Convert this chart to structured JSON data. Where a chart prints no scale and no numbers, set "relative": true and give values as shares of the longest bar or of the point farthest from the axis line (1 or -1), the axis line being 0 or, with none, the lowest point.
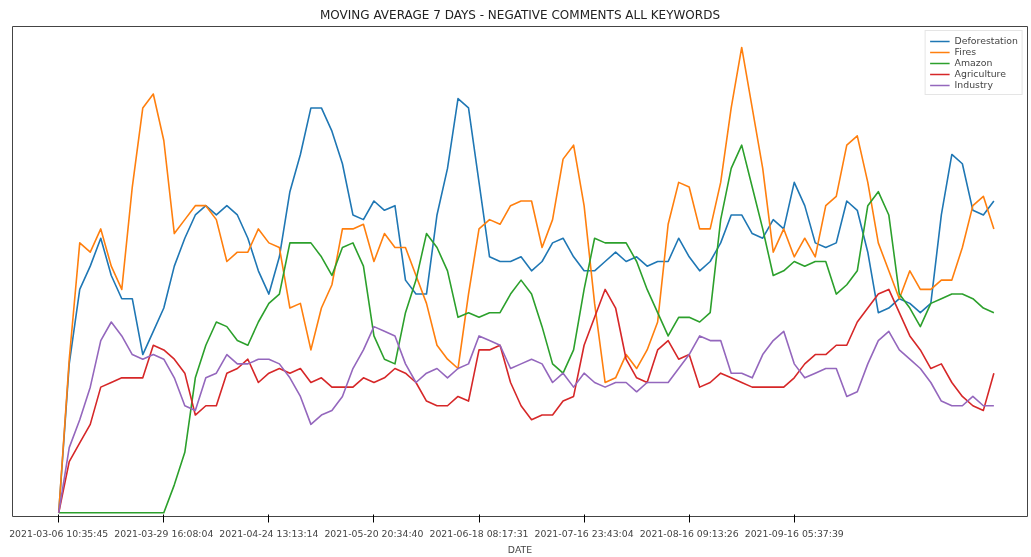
{
  "chart_data": {
    "type": "line",
    "title": "MOVING AVERAGE 7 DAYS - NEGATIVE COMMENTS ALL KEYWORDS",
    "xlabel": "DATE",
    "relative": true,
    "grid": false,
    "legend": "top right",
    "line_style": "solid",
    "marker": "none",
    "categories": [
      "2021-03-06 10:35:45",
      null,
      null,
      null,
      null,
      null,
      null,
      null,
      null,
      null,
      "2021-03-29 16:08:04",
      null,
      null,
      null,
      null,
      null,
      null,
      null,
      null,
      null,
      "2021-04-24 13:13:14",
      null,
      null,
      null,
      null,
      null,
      null,
      null,
      null,
      null,
      "2021-05-20 20:34:40",
      null,
      null,
      null,
      null,
      null,
      null,
      null,
      null,
      null,
      "2021-06-18 08:17:31",
      null,
      null,
      null,
      null,
      null,
      null,
      null,
      null,
      null,
      "2021-07-16 23:43:04",
      null,
      null,
      null,
      null,
      null,
      null,
      null,
      null,
      null,
      "2021-08-16 09:13:26",
      null,
      null,
      null,
      null,
      null,
      null,
      null,
      null,
      null,
      "2021-09-16 05:37:39",
      null,
      null,
      null,
      null,
      null,
      null,
      null,
      null,
      null,
      null,
      null,
      null,
      null,
      null,
      null,
      null,
      null,
      null,
      null
    ],
    "series": [
      {
        "name": "Deforestation",
        "color": "#1f77b4",
        "values": [
          0,
          0.32,
          0.48,
          0.53,
          0.59,
          0.51,
          0.46,
          0.46,
          0.34,
          0.39,
          0.44,
          0.53,
          0.59,
          0.64,
          0.66,
          0.64,
          0.66,
          0.64,
          0.59,
          0.52,
          0.47,
          0.55,
          0.69,
          0.77,
          0.87,
          0.87,
          0.82,
          0.75,
          0.64,
          0.63,
          0.67,
          0.65,
          0.66,
          0.5,
          0.47,
          0.47,
          0.64,
          0.74,
          0.89,
          0.87,
          0.71,
          0.55,
          0.54,
          0.54,
          0.55,
          0.52,
          0.54,
          0.58,
          0.59,
          0.55,
          0.52,
          0.52,
          0.54,
          0.56,
          0.54,
          0.55,
          0.53,
          0.54,
          0.54,
          0.59,
          0.55,
          0.52,
          0.54,
          0.58,
          0.64,
          0.64,
          0.6,
          0.59,
          0.63,
          0.61,
          0.71,
          0.66,
          0.58,
          0.57,
          0.58,
          0.67,
          0.65,
          0.56,
          0.43,
          0.44,
          0.46,
          0.45,
          0.43,
          0.45,
          0.64,
          0.77,
          0.75,
          0.65,
          0.64,
          0.67
        ]
      },
      {
        "name": "Fires",
        "color": "#ff7f0e",
        "values": [
          0,
          0.33,
          0.58,
          0.56,
          0.61,
          0.53,
          0.48,
          0.7,
          0.87,
          0.9,
          0.8,
          0.6,
          0.63,
          0.66,
          0.66,
          0.63,
          0.54,
          0.56,
          0.56,
          0.61,
          0.58,
          0.57,
          0.44,
          0.45,
          0.35,
          0.44,
          0.49,
          0.61,
          0.61,
          0.62,
          0.54,
          0.6,
          0.57,
          0.57,
          0.51,
          0.45,
          0.36,
          0.33,
          0.31,
          0.47,
          0.61,
          0.63,
          0.62,
          0.66,
          0.67,
          0.67,
          0.57,
          0.63,
          0.76,
          0.79,
          0.66,
          0.45,
          0.28,
          0.29,
          0.34,
          0.31,
          0.35,
          0.41,
          0.62,
          0.71,
          0.7,
          0.61,
          0.61,
          0.71,
          0.87,
          1.0,
          0.87,
          0.74,
          0.56,
          0.61,
          0.55,
          0.59,
          0.55,
          0.66,
          0.68,
          0.79,
          0.81,
          0.71,
          0.58,
          0.52,
          0.46,
          0.52,
          0.48,
          0.48,
          0.5,
          0.5,
          0.57,
          0.66,
          0.68,
          0.61
        ]
      },
      {
        "name": "Amazon",
        "color": "#2ca02c",
        "values": [
          0,
          0,
          0,
          0,
          0,
          0,
          0,
          0,
          0,
          0,
          0,
          0.06,
          0.13,
          0.29,
          0.36,
          0.41,
          0.4,
          0.37,
          0.36,
          0.41,
          0.45,
          0.47,
          0.58,
          0.58,
          0.58,
          0.55,
          0.51,
          0.57,
          0.58,
          0.53,
          0.38,
          0.33,
          0.32,
          0.43,
          0.5,
          0.6,
          0.57,
          0.52,
          0.42,
          0.43,
          0.42,
          0.43,
          0.43,
          0.47,
          0.5,
          0.47,
          0.4,
          0.32,
          0.3,
          0.35,
          0.48,
          0.59,
          0.58,
          0.58,
          0.58,
          0.54,
          0.48,
          0.43,
          0.38,
          0.42,
          0.42,
          0.41,
          0.43,
          0.63,
          0.74,
          0.79,
          0.7,
          0.61,
          0.51,
          0.52,
          0.54,
          0.53,
          0.54,
          0.54,
          0.47,
          0.49,
          0.52,
          0.66,
          0.69,
          0.64,
          0.47,
          0.44,
          0.4,
          0.45,
          0.46,
          0.47,
          0.47,
          0.46,
          0.44,
          0.43
        ]
      },
      {
        "name": "Agriculture",
        "color": "#d62728",
        "values": [
          0,
          0.11,
          0.15,
          0.19,
          0.27,
          0.28,
          0.29,
          0.29,
          0.29,
          0.36,
          0.35,
          0.33,
          0.3,
          0.21,
          0.23,
          0.23,
          0.3,
          0.31,
          0.33,
          0.28,
          0.3,
          0.31,
          0.3,
          0.31,
          0.28,
          0.29,
          0.27,
          0.27,
          0.27,
          0.29,
          0.28,
          0.29,
          0.31,
          0.3,
          0.28,
          0.24,
          0.23,
          0.23,
          0.25,
          0.24,
          0.35,
          0.35,
          0.36,
          0.28,
          0.23,
          0.2,
          0.21,
          0.21,
          0.24,
          0.25,
          0.36,
          0.42,
          0.48,
          0.44,
          0.33,
          0.29,
          0.28,
          0.35,
          0.37,
          0.33,
          0.34,
          0.27,
          0.28,
          0.3,
          0.29,
          0.28,
          0.27,
          0.27,
          0.27,
          0.27,
          0.29,
          0.32,
          0.34,
          0.34,
          0.36,
          0.36,
          0.41,
          0.44,
          0.47,
          0.48,
          0.43,
          0.38,
          0.35,
          0.31,
          0.32,
          0.28,
          0.25,
          0.23,
          0.22,
          0.3
        ]
      },
      {
        "name": "Industry",
        "color": "#9467bd",
        "values": [
          0,
          0.14,
          0.2,
          0.27,
          0.37,
          0.41,
          0.38,
          0.34,
          0.33,
          0.34,
          0.33,
          0.29,
          0.23,
          0.22,
          0.29,
          0.3,
          0.34,
          0.32,
          0.32,
          0.33,
          0.33,
          0.32,
          0.29,
          0.25,
          0.19,
          0.21,
          0.22,
          0.25,
          0.31,
          0.35,
          0.4,
          0.39,
          0.38,
          0.32,
          0.28,
          0.3,
          0.31,
          0.29,
          0.31,
          0.32,
          0.38,
          0.37,
          0.36,
          0.31,
          0.32,
          0.33,
          0.32,
          0.28,
          0.3,
          0.27,
          0.3,
          0.28,
          0.27,
          0.28,
          0.28,
          0.26,
          0.28,
          0.28,
          0.28,
          0.31,
          0.34,
          0.38,
          0.37,
          0.37,
          0.3,
          0.3,
          0.29,
          0.34,
          0.37,
          0.39,
          0.32,
          0.29,
          0.3,
          0.31,
          0.31,
          0.25,
          0.26,
          0.32,
          0.37,
          0.39,
          0.35,
          0.33,
          0.31,
          0.28,
          0.24,
          0.23,
          0.23,
          0.25,
          0.23,
          0.23
        ]
      }
    ]
  }
}
